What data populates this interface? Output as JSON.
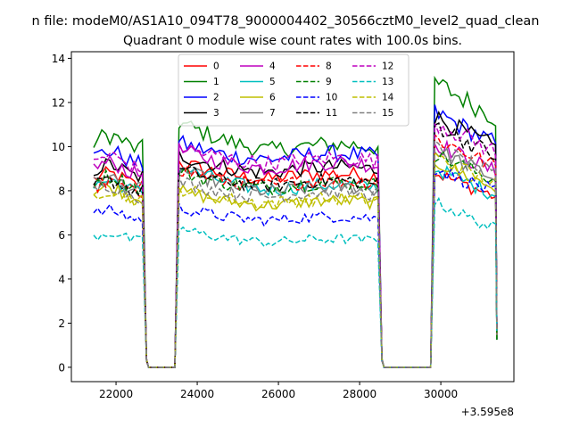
{
  "suptitle": "n file: modeM0/AS1A10_094T78_9000004402_30566cztM0_level2_quad_clean",
  "chart_data": {
    "type": "line",
    "title": "Quadrant 0 module wise count rates with 100.0s bins.",
    "xlabel": "",
    "ylabel": "",
    "x_offset_label": "+3.595e8",
    "xlim": [
      20900,
      31800
    ],
    "ylim": [
      -0.65,
      14.3
    ],
    "grid": false,
    "legend_placement": "top-center",
    "x_ticks": [
      22000,
      24000,
      26000,
      28000,
      30000
    ],
    "x_tick_labels": [
      "22000",
      "24000",
      "26000",
      "28000",
      "30000"
    ],
    "y_ticks": [
      0,
      2,
      4,
      6,
      8,
      10,
      12,
      14
    ],
    "y_tick_labels": [
      "0",
      "2",
      "4",
      "6",
      "8",
      "10",
      "12",
      "14"
    ],
    "time_segments": [
      {
        "x_start": 21450,
        "x_end": 22650
      },
      {
        "x_start": 23550,
        "x_end": 28450
      },
      {
        "x_start": 29850,
        "x_end": 31350
      }
    ],
    "gap_windows": [
      {
        "x_start": 22750,
        "x_end": 23450
      },
      {
        "x_start": 28550,
        "x_end": 29750
      }
    ],
    "series": [
      {
        "name": "0",
        "color": "#ff0000",
        "dash": "solid",
        "levels": [
          8.5,
          8.6,
          8.4
        ],
        "peak_factor": [
          1.0,
          1.08,
          1.05
        ]
      },
      {
        "name": "1",
        "color": "#008000",
        "dash": "solid",
        "levels": [
          10.2,
          9.9,
          12.3
        ],
        "peak_factor": [
          1.0,
          1.12,
          1.05
        ]
      },
      {
        "name": "2",
        "color": "#0000ff",
        "dash": "solid",
        "levels": [
          9.5,
          9.5,
          11.0
        ],
        "peak_factor": [
          1.0,
          1.07,
          1.05
        ]
      },
      {
        "name": "3",
        "color": "#000000",
        "dash": "solid",
        "levels": [
          8.9,
          8.9,
          10.8
        ],
        "peak_factor": [
          1.0,
          1.08,
          1.05
        ]
      },
      {
        "name": "4",
        "color": "#bf00bf",
        "dash": "solid",
        "levels": [
          9.0,
          9.1,
          9.6
        ],
        "peak_factor": [
          1.0,
          1.08,
          1.06
        ]
      },
      {
        "name": "5",
        "color": "#00bfbf",
        "dash": "solid",
        "levels": [
          8.2,
          8.1,
          8.5
        ],
        "peak_factor": [
          1.0,
          1.12,
          1.06
        ]
      },
      {
        "name": "6",
        "color": "#bfbf00",
        "dash": "solid",
        "levels": [
          7.9,
          7.4,
          8.8
        ],
        "peak_factor": [
          1.0,
          1.08,
          1.06
        ]
      },
      {
        "name": "7",
        "color": "#808080",
        "dash": "solid",
        "levels": [
          8.3,
          8.0,
          9.3
        ],
        "peak_factor": [
          1.0,
          1.12,
          1.06
        ]
      },
      {
        "name": "8",
        "color": "#ff0000",
        "dash": "dashed",
        "levels": [
          8.1,
          8.3,
          9.9
        ],
        "peak_factor": [
          1.0,
          1.08,
          1.05
        ]
      },
      {
        "name": "9",
        "color": "#008000",
        "dash": "dashed",
        "levels": [
          8.4,
          8.2,
          9.2
        ],
        "peak_factor": [
          1.0,
          1.08,
          1.05
        ]
      },
      {
        "name": "10",
        "color": "#0000ff",
        "dash": "dashed",
        "levels": [
          6.9,
          6.7,
          8.6
        ],
        "peak_factor": [
          1.0,
          1.08,
          1.05
        ]
      },
      {
        "name": "11",
        "color": "#000000",
        "dash": "dashed",
        "levels": [
          8.2,
          8.3,
          10.4
        ],
        "peak_factor": [
          1.0,
          1.08,
          1.06
        ]
      },
      {
        "name": "12",
        "color": "#bf00bf",
        "dash": "dashed",
        "levels": [
          9.3,
          9.3,
          10.6
        ],
        "peak_factor": [
          1.0,
          1.08,
          1.05
        ]
      },
      {
        "name": "13",
        "color": "#00bfbf",
        "dash": "dashed",
        "levels": [
          5.9,
          5.7,
          6.8
        ],
        "peak_factor": [
          1.0,
          1.1,
          1.1
        ]
      },
      {
        "name": "14",
        "color": "#bfbf00",
        "dash": "dashed",
        "levels": [
          7.8,
          7.5,
          9.0
        ],
        "peak_factor": [
          1.0,
          1.08,
          1.06
        ]
      },
      {
        "name": "15",
        "color": "#808080",
        "dash": "dashed",
        "levels": [
          8.0,
          7.8,
          9.4
        ],
        "peak_factor": [
          1.0,
          1.08,
          1.06
        ]
      }
    ]
  }
}
